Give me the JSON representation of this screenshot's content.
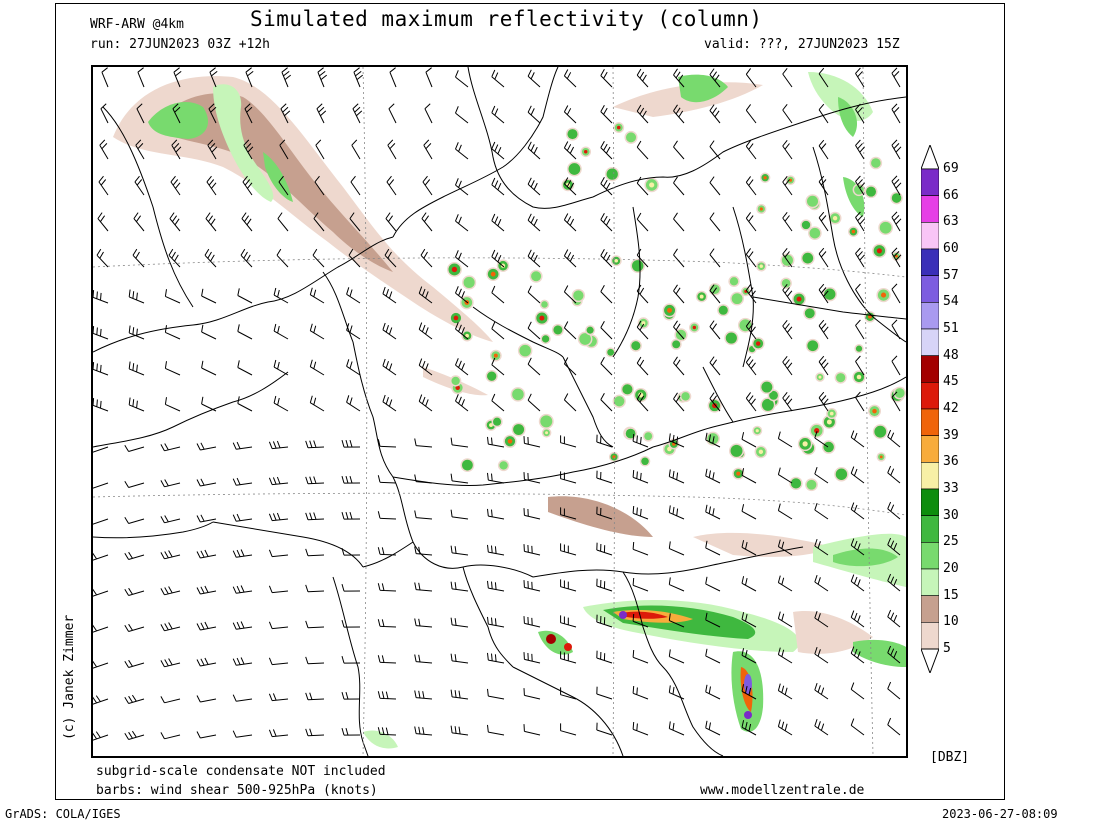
{
  "header": {
    "model": "WRF-ARW @4km",
    "title": "Simulated maximum reflectivity (column)",
    "run": "run: 27JUN2023 03Z +12h",
    "valid": "valid: ???, 27JUN2023 15Z"
  },
  "footer": {
    "note1": "subgrid-scale condensate NOT included",
    "note2": "barbs: wind shear 500-925hPa (knots)",
    "website": "www.modellzentrale.de",
    "software": "GrADS: COLA/IGES",
    "timestamp": "2023-06-27-08:09"
  },
  "copyright": "(c) Janek Zimmer",
  "legend": {
    "unit": "[DBZ]",
    "labels": [
      "69",
      "66",
      "63",
      "60",
      "57",
      "54",
      "51",
      "48",
      "45",
      "42",
      "39",
      "36",
      "33",
      "30",
      "25",
      "20",
      "15",
      "10",
      "5"
    ],
    "colors": [
      "#7a2bc8",
      "#e63ee6",
      "#f9c5f6",
      "#3a2fb8",
      "#7d5ce0",
      "#a99af0",
      "#d7d4f7",
      "#a30000",
      "#dc1a0a",
      "#f0640a",
      "#f8ac3c",
      "#f7f0a6",
      "#0d8d0d",
      "#3fb83f",
      "#78da6e",
      "#c6f5b9",
      "#c6a08f",
      "#eed8ce"
    ],
    "top_color": "#ffffff",
    "bottom_color": "#ffffff"
  },
  "map": {
    "field": "reflectivity",
    "wind_barbs": "wind shear 500-925hPa"
  }
}
